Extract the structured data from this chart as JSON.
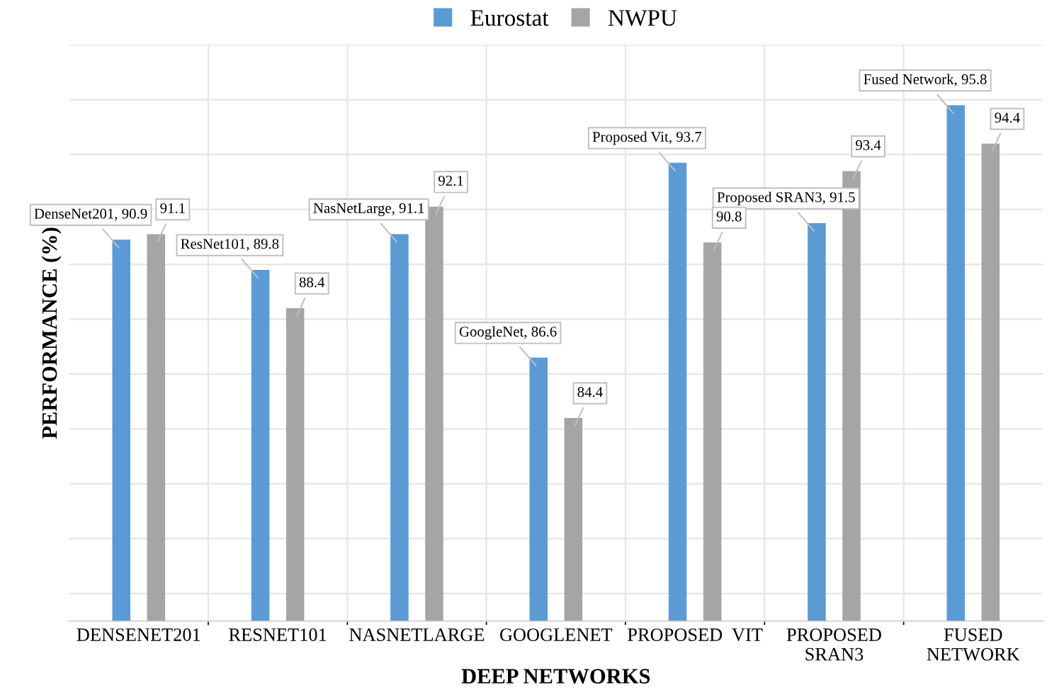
{
  "chart_data": {
    "type": "bar",
    "xlabel": "DEEP NETWORKS",
    "ylabel": "PERFORMANCE (%)",
    "categories": [
      "DENSENET201",
      "RESNET101",
      "NASNETLARGE",
      "GOOGLENET",
      "PROPOSED  VIT",
      "PROPOSED\nSRAN3",
      "FUSED\nNETWORK"
    ],
    "series": [
      {
        "name": "Eurostat",
        "color": "#5b9bd5",
        "values": [
          90.9,
          89.8,
          91.1,
          86.6,
          93.7,
          91.5,
          95.8
        ],
        "value_labels": [
          "DenseNet201, 90.9",
          "ResNet101, 89.8",
          "NasNetLarge, 91.1",
          "GoogleNet, 86.6",
          "Proposed Vit, 93.7",
          "Proposed SRAN3, 91.5",
          "Fused Network, 95.8"
        ]
      },
      {
        "name": "NWPU",
        "color": "#a5a5a5",
        "values": [
          91.1,
          88.4,
          92.1,
          84.4,
          90.8,
          93.4,
          94.4
        ],
        "value_labels": [
          "91.1",
          "88.4",
          "92.1",
          "84.4",
          "90.8",
          "93.4",
          "94.4"
        ]
      }
    ],
    "ylim": [
      77,
      98
    ],
    "yticks": [
      {
        "value": 78,
        "label": null
      },
      {
        "value": 80,
        "label": null
      },
      {
        "value": 82,
        "label": null
      },
      {
        "value": 84,
        "label": null
      },
      {
        "value": 86,
        "label": null
      },
      {
        "value": 88,
        "label": null
      },
      {
        "value": 90,
        "label": null
      },
      {
        "value": 92,
        "label": null
      },
      {
        "value": 94,
        "label": null
      },
      {
        "value": 96,
        "label": null
      },
      {
        "value": 98,
        "label": null
      }
    ],
    "tick_labels": "x",
    "grid": true,
    "legend": "top"
  }
}
